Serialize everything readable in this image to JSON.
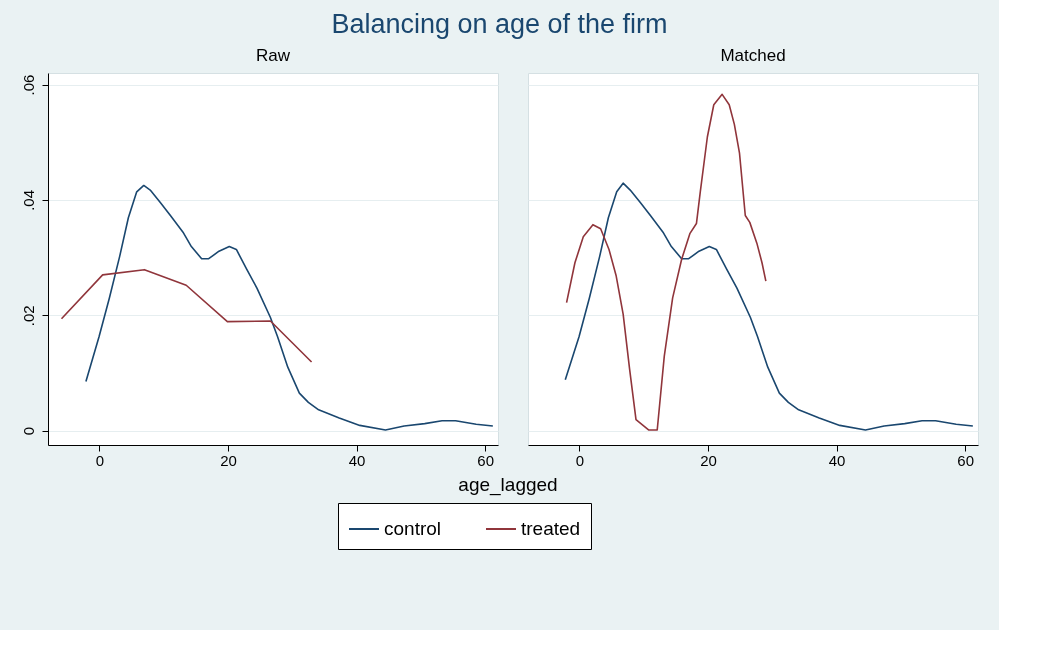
{
  "chart_data": [
    {
      "type": "line",
      "title": "Balancing on age of the firm",
      "subtitle": "Raw",
      "xlabel": "age_lagged",
      "xlim": [
        -8,
        62
      ],
      "xticks": [
        0,
        20,
        40,
        60
      ],
      "ylim": [
        -0.0025,
        0.062
      ],
      "yticks": [
        {
          "value": 0,
          "label": "0"
        },
        {
          "value": 0.02,
          "label": ".02"
        },
        {
          "value": 0.04,
          "label": ".04"
        },
        {
          "value": 0.06,
          "label": ".06"
        }
      ],
      "grid": "y",
      "legend": "bottom",
      "series": [
        {
          "name": "control",
          "color": "#1a476f",
          "x": [
            -2.1,
            -0.05,
            1.55,
            3.15,
            4.5,
            5.8,
            6.9,
            7.9,
            9.5,
            11.1,
            13.0,
            14.3,
            15.9,
            17.0,
            18.6,
            20.2,
            21.3,
            22.9,
            24.5,
            26.6,
            27.7,
            29.3,
            31.1,
            32.5,
            34.1,
            37.3,
            40.5,
            44.5,
            47.4,
            50.6,
            53.3,
            55.4,
            58.6,
            61.2
          ],
          "values": [
            0.0085,
            0.0163,
            0.023,
            0.0302,
            0.0369,
            0.0414,
            0.0425,
            0.0417,
            0.0395,
            0.0372,
            0.0344,
            0.0319,
            0.0298,
            0.0298,
            0.0311,
            0.0319,
            0.0314,
            0.028,
            0.0247,
            0.0196,
            0.0163,
            0.011,
            0.0065,
            0.0049,
            0.0036,
            0.0022,
            0.0009,
            0.0001,
            0.0008,
            0.0012,
            0.0017,
            0.0017,
            0.0011,
            0.0008
          ]
        },
        {
          "name": "treated",
          "color": "#90353b",
          "x": [
            -5.9,
            0.5,
            7.0,
            13.5,
            19.9,
            26.6,
            33.0
          ],
          "values": [
            0.0194,
            0.027,
            0.0279,
            0.0252,
            0.0189,
            0.019,
            0.0119
          ]
        }
      ]
    },
    {
      "type": "line",
      "subtitle": "Matched",
      "xlim": [
        -8,
        62
      ],
      "xticks": [
        0,
        20,
        40,
        60
      ],
      "ylim": [
        -0.0025,
        0.062
      ],
      "grid": "y",
      "tick_labels": "x",
      "series": [
        {
          "name": "control",
          "color": "#1a476f",
          "x": [
            -2.2,
            -0.05,
            1.55,
            3.15,
            4.5,
            5.8,
            6.8,
            7.9,
            9.5,
            11.1,
            13.0,
            14.3,
            15.9,
            17.0,
            18.6,
            20.2,
            21.3,
            22.9,
            24.5,
            26.6,
            27.7,
            29.3,
            31.1,
            32.5,
            34.1,
            37.3,
            40.5,
            44.5,
            47.4,
            50.6,
            53.3,
            55.4,
            58.6,
            61.2
          ],
          "values": [
            0.0088,
            0.0163,
            0.023,
            0.0302,
            0.0369,
            0.0414,
            0.0429,
            0.0417,
            0.0395,
            0.0372,
            0.0344,
            0.0319,
            0.0298,
            0.0298,
            0.0311,
            0.0319,
            0.0314,
            0.028,
            0.0247,
            0.0196,
            0.0163,
            0.011,
            0.0065,
            0.0049,
            0.0036,
            0.0022,
            0.0009,
            0.0001,
            0.0008,
            0.0012,
            0.0017,
            0.0017,
            0.0011,
            0.0008
          ]
        },
        {
          "name": "treated",
          "color": "#90353b",
          "x": [
            -2.0,
            -0.7,
            0.6,
            2.1,
            3.3,
            4.6,
            5.7,
            6.8,
            7.8,
            8.8,
            10.8,
            12.1,
            13.2,
            14.5,
            15.9,
            17.2,
            18.2,
            18.8,
            19.9,
            20.9,
            22.2,
            23.3,
            24.1,
            24.9,
            25.8,
            26.5,
            27.6,
            28.4,
            29.0
          ],
          "values": [
            0.0222,
            0.0291,
            0.0336,
            0.0357,
            0.035,
            0.0314,
            0.0269,
            0.0202,
            0.0107,
            0.0019,
            0.0001,
            0.0001,
            0.0129,
            0.023,
            0.0297,
            0.0342,
            0.0359,
            0.0414,
            0.0509,
            0.0565,
            0.0583,
            0.0565,
            0.0531,
            0.0481,
            0.0373,
            0.0361,
            0.0325,
            0.0291,
            0.0259
          ]
        }
      ]
    }
  ]
}
